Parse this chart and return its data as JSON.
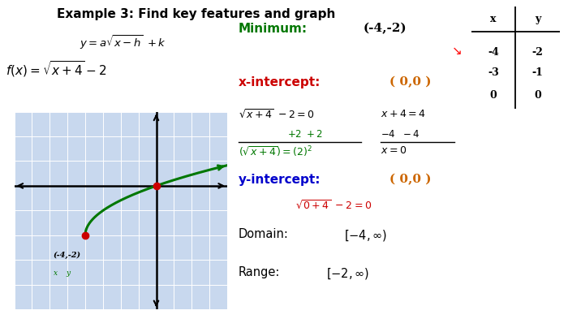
{
  "title": "Example 3: Find key features and graph",
  "bg_color": "#ffffff",
  "grid_bg": "#c8d8ee",
  "grid_line_color": "#ffffff",
  "graph_xlim": [
    -8,
    4
  ],
  "graph_ylim": [
    -5,
    3
  ],
  "curve_color": "#007700",
  "point_color": "#cc0000",
  "min_point": [
    -4,
    -2
  ],
  "intercept_point": [
    0,
    0
  ],
  "label_min": "(-4,-2)",
  "table_x": [
    "x",
    "-4",
    "-3",
    "0"
  ],
  "table_y": [
    "y",
    "-2",
    "-1",
    "0"
  ],
  "minimum_color": "#007700",
  "xint_color": "#cc0000",
  "yint_color": "#0000cc",
  "orange_color": "#cc6600",
  "work_green": "#007700",
  "work_red": "#cc0000"
}
